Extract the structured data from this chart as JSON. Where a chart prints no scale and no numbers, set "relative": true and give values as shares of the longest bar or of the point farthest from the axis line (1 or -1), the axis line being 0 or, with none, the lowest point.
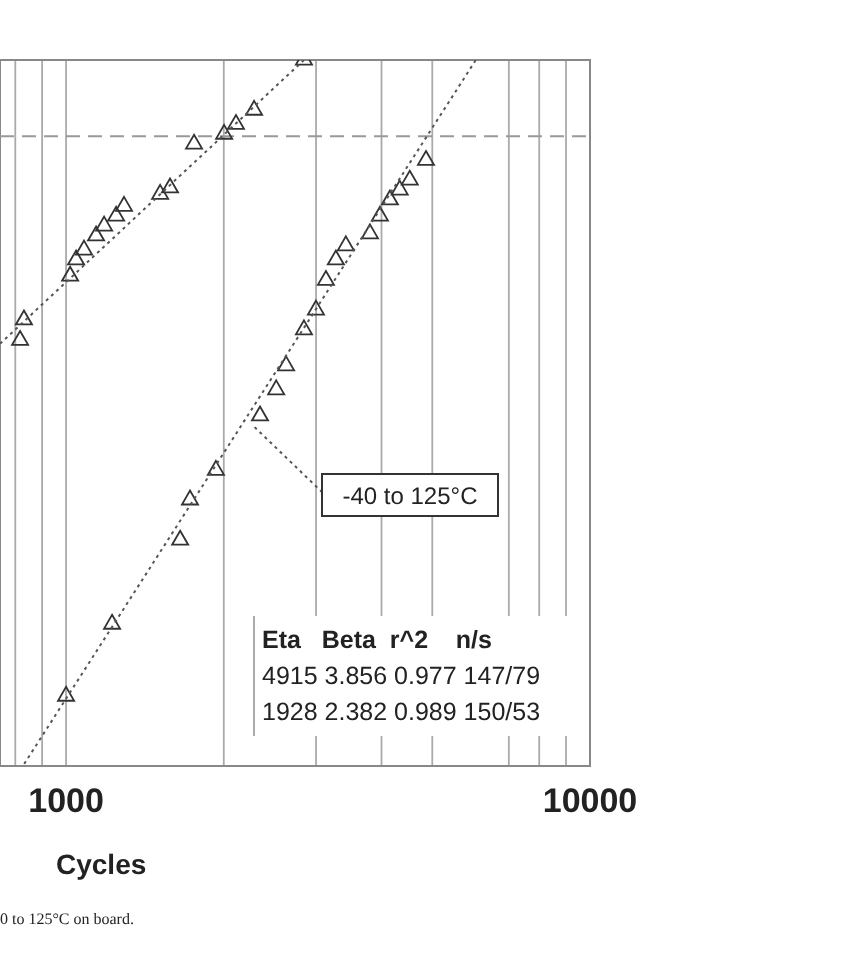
{
  "chart_data": {
    "type": "scatter",
    "relative": true,
    "xlabel": "Cycles",
    "log": "x",
    "grid": "x",
    "xlim": [
      748,
      10000
    ],
    "xticks": [
      {
        "value": 800,
        "label": null
      },
      {
        "value": 900,
        "label": null
      },
      1000,
      {
        "value": 2000,
        "label": null
      },
      {
        "value": 3000,
        "label": null
      },
      {
        "value": 4000,
        "label": null
      },
      {
        "value": 5000,
        "label": null
      },
      {
        "value": 7000,
        "label": null
      },
      {
        "value": 8000,
        "label": null
      },
      {
        "value": 9000,
        "label": null
      },
      10000
    ],
    "series": [
      {
        "marker": "triangle",
        "color": "#333333",
        "x": [
          817,
          831,
          1018,
          1045,
          1082,
          1141,
          1182,
          1246,
          1290,
          1512,
          1579,
          1755,
          2003,
          2110,
          2285,
          2845
        ],
        "values": [
          0.603,
          0.632,
          0.694,
          0.717,
          0.731,
          0.751,
          0.765,
          0.779,
          0.793,
          0.81,
          0.819,
          0.881,
          0.895,
          0.909,
          0.929,
          1.0
        ]
      },
      {
        "marker": "triangle",
        "color": "#333333",
        "x": [
          4864,
          4529,
          4333,
          4150,
          3972,
          3802,
          3420,
          3273,
          3133,
          2999,
          2845,
          2630,
          2518,
          2345,
          1932,
          1724,
          1651,
          1224,
          1000
        ],
        "values": [
          0.858,
          0.83,
          0.816,
          0.802,
          0.779,
          0.754,
          0.737,
          0.717,
          0.688,
          0.646,
          0.618,
          0.567,
          0.533,
          0.496,
          0.419,
          0.377,
          0.32,
          0.201,
          0.099
        ]
      },
      {
        "type": "line",
        "marker": "none",
        "color": "#555555",
        "line_style": "dotted",
        "x": [
          748,
          2845
        ],
        "values": [
          0.598,
          1.0
        ]
      },
      {
        "type": "line",
        "marker": "none",
        "color": "#555555",
        "line_style": "dotted",
        "x": [
          832,
          6054
        ],
        "values": [
          0.003,
          1.0
        ]
      }
    ],
    "ref_lines": [
      {
        "axis": "y",
        "value": 0.892,
        "color": "#999999",
        "line_style": "dashed"
      }
    ],
    "annotations": [
      {
        "text": "-40 to 125°C",
        "x": 2290,
        "y": 0.48
      },
      "Eta   Beta  r^2    n/s",
      "4915 3.856 0.977 147/79",
      "1928 2.382 0.989 150/53",
      "0 to 125°C on board."
    ]
  }
}
